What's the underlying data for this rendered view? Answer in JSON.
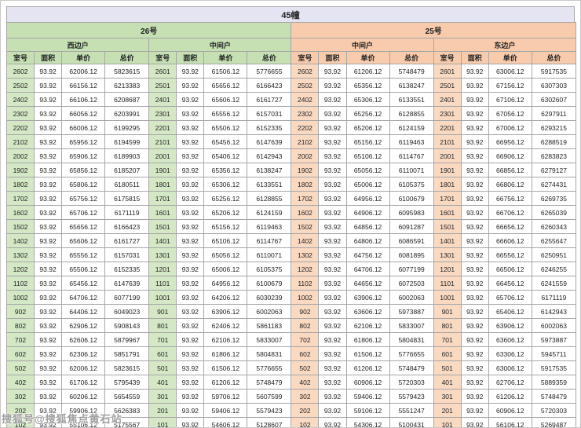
{
  "page": {
    "title": "45幢",
    "watermark": "搜狐号@搜狐焦点黄石站"
  },
  "colors": {
    "title_bg": "#e4e4f2",
    "green": "#c6e0b4",
    "peach": "#f8cbad",
    "green_light": "#d5e8c6",
    "peach_light": "#fad9c1",
    "border": "#a6a6a6"
  },
  "chart_data": {
    "type": "table",
    "title": "45幢",
    "column_groups": [
      {
        "label": "26号",
        "theme": "green",
        "units": [
          "西边户",
          "中间户"
        ]
      },
      {
        "label": "25号",
        "theme": "peach",
        "units": [
          "中间户",
          "东边户"
        ]
      }
    ],
    "columns": [
      "室号",
      "面积",
      "单价",
      "总价"
    ],
    "rows": [
      [
        "2602",
        "93.92",
        "62006.12",
        "5823615",
        "2601",
        "93.92",
        "61506.12",
        "5776655",
        "2602",
        "93.92",
        "61206.12",
        "5748479",
        "2601",
        "93.92",
        "63006.12",
        "5917535"
      ],
      [
        "2502",
        "93.92",
        "66156.12",
        "6213383",
        "2501",
        "93.92",
        "65656.12",
        "6166423",
        "2502",
        "93.92",
        "65356.12",
        "6138247",
        "2501",
        "93.92",
        "67156.12",
        "6307303"
      ],
      [
        "2402",
        "93.92",
        "66106.12",
        "6208687",
        "2401",
        "93.92",
        "65606.12",
        "6161727",
        "2402",
        "93.92",
        "65306.12",
        "6133551",
        "2401",
        "93.92",
        "67106.12",
        "6302607"
      ],
      [
        "2302",
        "93.92",
        "66056.12",
        "6203991",
        "2301",
        "93.92",
        "65556.12",
        "6157031",
        "2302",
        "93.92",
        "65256.12",
        "6128855",
        "2301",
        "93.92",
        "67056.12",
        "6297911"
      ],
      [
        "2202",
        "93.92",
        "66006.12",
        "6199295",
        "2201",
        "93.92",
        "65506.12",
        "6152335",
        "2202",
        "93.92",
        "65206.12",
        "6124159",
        "2201",
        "93.92",
        "67006.12",
        "6293215"
      ],
      [
        "2102",
        "93.92",
        "65956.12",
        "6194599",
        "2101",
        "93.92",
        "65456.12",
        "6147639",
        "2102",
        "93.92",
        "65156.12",
        "6119463",
        "2101",
        "93.92",
        "66956.12",
        "6288519"
      ],
      [
        "2002",
        "93.92",
        "65906.12",
        "6189903",
        "2001",
        "93.92",
        "65406.12",
        "6142943",
        "2002",
        "93.92",
        "65106.12",
        "6114767",
        "2001",
        "93.92",
        "66906.12",
        "6283823"
      ],
      [
        "1902",
        "93.92",
        "65856.12",
        "6185207",
        "1901",
        "93.92",
        "65356.12",
        "6138247",
        "1902",
        "93.92",
        "65056.12",
        "6110071",
        "1901",
        "93.92",
        "66856.12",
        "6279127"
      ],
      [
        "1802",
        "93.92",
        "65806.12",
        "6180511",
        "1801",
        "93.92",
        "65306.12",
        "6133551",
        "1802",
        "93.92",
        "65006.12",
        "6105375",
        "1801",
        "93.92",
        "66806.12",
        "6274431"
      ],
      [
        "1702",
        "93.92",
        "65756.12",
        "6175815",
        "1701",
        "93.92",
        "65256.12",
        "6128855",
        "1702",
        "93.92",
        "64956.12",
        "6100679",
        "1701",
        "93.92",
        "66756.12",
        "6269735"
      ],
      [
        "1602",
        "93.92",
        "65706.12",
        "6171119",
        "1601",
        "93.92",
        "65206.12",
        "6124159",
        "1602",
        "93.92",
        "64906.12",
        "6095983",
        "1601",
        "93.92",
        "66706.12",
        "6265039"
      ],
      [
        "1502",
        "93.92",
        "65656.12",
        "6166423",
        "1501",
        "93.92",
        "65156.12",
        "6119463",
        "1502",
        "93.92",
        "64856.12",
        "6091287",
        "1501",
        "93.92",
        "66656.12",
        "6260343"
      ],
      [
        "1402",
        "93.92",
        "65606.12",
        "6161727",
        "1401",
        "93.92",
        "65106.12",
        "6114767",
        "1402",
        "93.92",
        "64806.12",
        "6086591",
        "1401",
        "93.92",
        "66606.12",
        "6255647"
      ],
      [
        "1302",
        "93.92",
        "65556.12",
        "6157031",
        "1301",
        "93.92",
        "65056.12",
        "6110071",
        "1302",
        "93.92",
        "64756.12",
        "6081895",
        "1301",
        "93.92",
        "66556.12",
        "6250951"
      ],
      [
        "1202",
        "93.92",
        "65506.12",
        "6152335",
        "1201",
        "93.92",
        "65006.12",
        "6105375",
        "1202",
        "93.92",
        "64706.12",
        "6077199",
        "1201",
        "93.92",
        "66506.12",
        "6246255"
      ],
      [
        "1102",
        "93.92",
        "65456.12",
        "6147639",
        "1101",
        "93.92",
        "64956.12",
        "6100679",
        "1102",
        "93.92",
        "64656.12",
        "6072503",
        "1101",
        "93.92",
        "66456.12",
        "6241559"
      ],
      [
        "1002",
        "93.92",
        "64706.12",
        "6077199",
        "1001",
        "93.92",
        "64206.12",
        "6030239",
        "1002",
        "93.92",
        "63906.12",
        "6002063",
        "1001",
        "93.92",
        "65706.12",
        "6171119"
      ],
      [
        "902",
        "93.92",
        "64406.12",
        "6049023",
        "901",
        "93.92",
        "63906.12",
        "6002063",
        "902",
        "93.92",
        "63606.12",
        "5973887",
        "901",
        "93.92",
        "65406.12",
        "6142943"
      ],
      [
        "802",
        "93.92",
        "62906.12",
        "5908143",
        "801",
        "93.92",
        "62406.12",
        "5861183",
        "802",
        "93.92",
        "62106.12",
        "5833007",
        "801",
        "93.92",
        "63906.12",
        "6002063"
      ],
      [
        "702",
        "93.92",
        "62606.12",
        "5879967",
        "701",
        "93.92",
        "62106.12",
        "5833007",
        "702",
        "93.92",
        "61806.12",
        "5804831",
        "701",
        "93.92",
        "63606.12",
        "5973887"
      ],
      [
        "602",
        "93.92",
        "62306.12",
        "5851791",
        "601",
        "93.92",
        "61806.12",
        "5804831",
        "602",
        "93.92",
        "61506.12",
        "5776655",
        "601",
        "93.92",
        "63306.12",
        "5945711"
      ],
      [
        "502",
        "93.92",
        "62006.12",
        "5823615",
        "501",
        "93.92",
        "61506.12",
        "5776655",
        "502",
        "93.92",
        "61206.12",
        "5748479",
        "501",
        "93.92",
        "63006.12",
        "5917535"
      ],
      [
        "402",
        "93.92",
        "61706.12",
        "5795439",
        "401",
        "93.92",
        "61206.12",
        "5748479",
        "402",
        "93.92",
        "60906.12",
        "5720303",
        "401",
        "93.92",
        "62706.12",
        "5889359"
      ],
      [
        "302",
        "93.92",
        "60206.12",
        "5654559",
        "301",
        "93.92",
        "59706.12",
        "5607599",
        "302",
        "93.92",
        "59406.12",
        "5579423",
        "301",
        "93.92",
        "61206.12",
        "5748479"
      ],
      [
        "202",
        "93.92",
        "59906.12",
        "5626383",
        "201",
        "93.92",
        "59406.12",
        "5579423",
        "202",
        "93.92",
        "59106.12",
        "5551247",
        "201",
        "93.92",
        "60906.12",
        "5720303"
      ],
      [
        "102",
        "93.92",
        "55106.12",
        "5175567",
        "101",
        "93.92",
        "54606.12",
        "5128607",
        "102",
        "93.92",
        "54306.12",
        "5100431",
        "101",
        "93.92",
        "56106.12",
        "5269487"
      ]
    ]
  }
}
